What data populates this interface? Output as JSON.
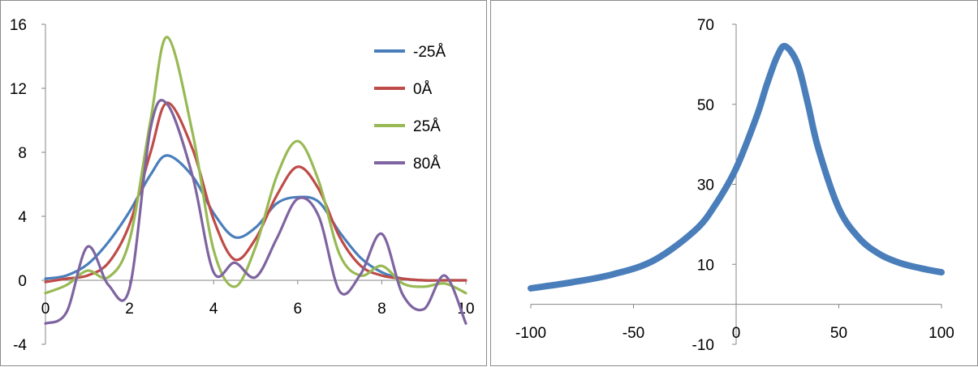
{
  "chart_data": [
    {
      "type": "line",
      "title": "",
      "xlabel": "",
      "ylabel": "",
      "xlim": [
        0,
        10
      ],
      "ylim": [
        -4,
        16
      ],
      "x_ticks": [
        "0",
        "2",
        "4",
        "6",
        "8",
        "10"
      ],
      "y_ticks": [
        "-4",
        "0",
        "4",
        "8",
        "12",
        "16"
      ],
      "legend_position": "top-right",
      "grid": false,
      "x": [
        0,
        0.5,
        1,
        1.5,
        2,
        2.5,
        2.9,
        3.5,
        4,
        4.5,
        5,
        5.5,
        6,
        6.5,
        7,
        7.5,
        8,
        8.5,
        9,
        9.5,
        10
      ],
      "series": [
        {
          "name": "-25Å",
          "color": "#4a7ebb",
          "values": [
            0.1,
            0.3,
            1.0,
            2.4,
            4.3,
            6.6,
            7.8,
            6.5,
            4.2,
            2.7,
            3.3,
            4.8,
            5.2,
            4.9,
            3.0,
            1.4,
            0.5,
            0.1,
            0.0,
            0.0,
            0.0
          ]
        },
        {
          "name": "0Å",
          "color": "#be4b48",
          "values": [
            -0.1,
            0.1,
            0.3,
            1.1,
            3.5,
            8.0,
            11.1,
            8.2,
            3.8,
            1.3,
            2.6,
            5.3,
            7.1,
            5.7,
            2.7,
            0.9,
            0.3,
            0.1,
            0.0,
            0.0,
            0.0
          ]
        },
        {
          "name": "25Å",
          "color": "#98b954",
          "values": [
            -0.8,
            -0.3,
            0.6,
            0.2,
            2.5,
            10.0,
            15.2,
            9.2,
            1.9,
            -0.4,
            2.1,
            6.5,
            8.7,
            6.2,
            1.6,
            0.3,
            0.9,
            -0.2,
            -0.4,
            -0.2,
            -0.8
          ]
        },
        {
          "name": "80Å",
          "color": "#7e64a0",
          "values": [
            -2.7,
            -2.0,
            2.1,
            -0.3,
            -0.5,
            9.5,
            11.0,
            6.5,
            0.5,
            1.1,
            0.2,
            2.6,
            5.1,
            4.0,
            -0.7,
            0.4,
            2.9,
            -0.9,
            -1.8,
            0.3,
            -2.7
          ]
        }
      ]
    },
    {
      "type": "line",
      "title": "",
      "xlabel": "",
      "ylabel": "",
      "xlim": [
        -100,
        100
      ],
      "ylim": [
        -10,
        70
      ],
      "x_ticks": [
        "-100",
        "-50",
        "0",
        "50",
        "100"
      ],
      "y_ticks": [
        "-10",
        "10",
        "30",
        "50",
        "70"
      ],
      "grid": false,
      "x": [
        -100,
        -80,
        -60,
        -40,
        -20,
        -10,
        0,
        10,
        15,
        20,
        24,
        30,
        35,
        40,
        50,
        60,
        70,
        80,
        90,
        100
      ],
      "series": [
        {
          "color": "#4a7ebb",
          "values": [
            4.0,
            5.5,
            7.5,
            11.0,
            18.5,
            25.0,
            34.0,
            47.0,
            55.0,
            62.0,
            64.5,
            60.0,
            50.0,
            39.0,
            24.0,
            16.5,
            12.5,
            10.3,
            9.0,
            8.0
          ]
        }
      ]
    }
  ]
}
